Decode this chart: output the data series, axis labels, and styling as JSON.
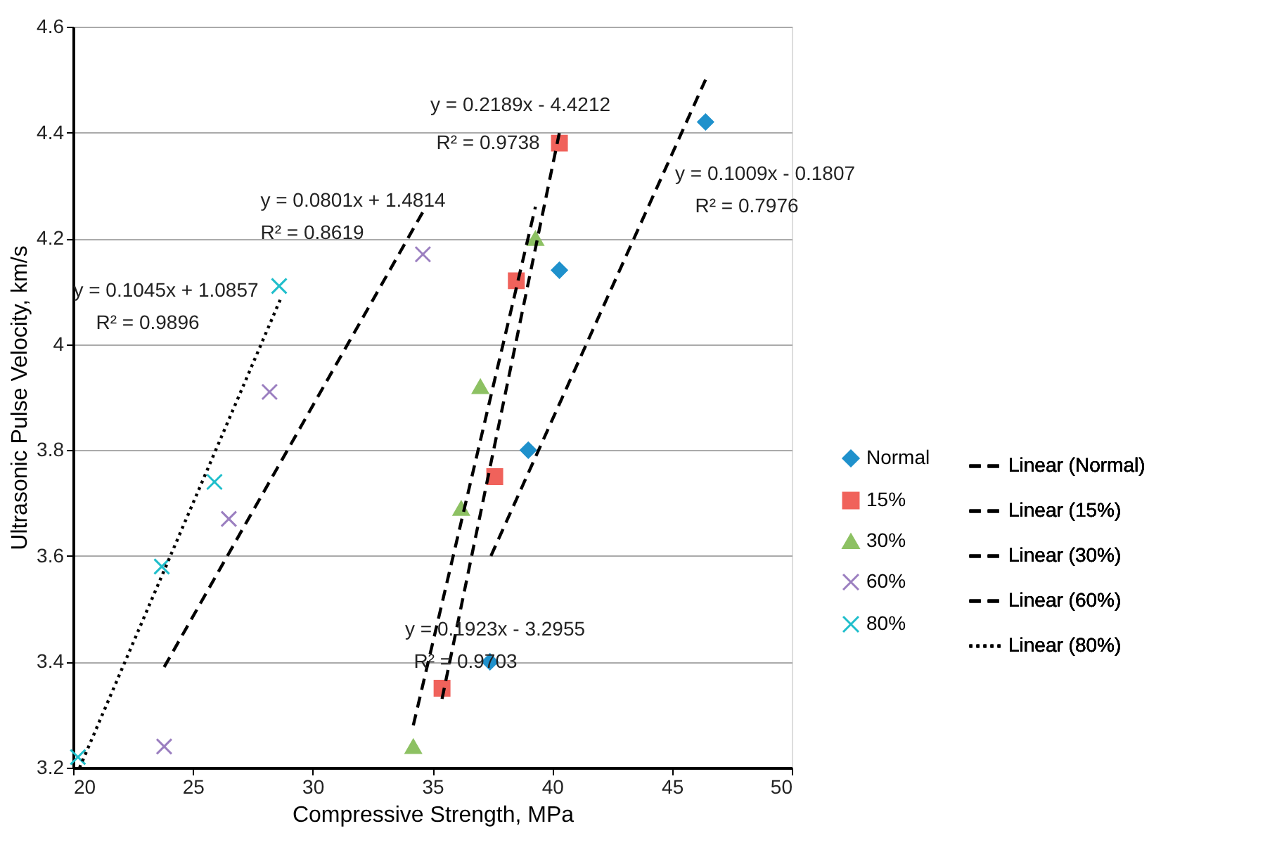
{
  "chart_data": {
    "type": "scatter",
    "xlabel": "Compressive Strength, MPa",
    "ylabel": "Ultrasonic Pulse Velocity, km/s",
    "xlim": [
      20,
      50
    ],
    "xticks": [
      20,
      25,
      30,
      35,
      40,
      45,
      50
    ],
    "ylim": [
      3.2,
      4.6
    ],
    "yticks": [
      3.2,
      3.4,
      3.6,
      3.8,
      4,
      4.2,
      4.4,
      4.6
    ],
    "grid": "y",
    "legend": "right",
    "series": [
      {
        "name": "Normal",
        "marker": "diamond",
        "color": "#1f91cc",
        "x": [
          40.3,
          39.0,
          37.4,
          46.4
        ],
        "values": [
          4.14,
          3.8,
          3.4,
          4.42
        ]
      },
      {
        "name": "15%",
        "marker": "square",
        "color": "#f0625b",
        "x": [
          40.3,
          38.5,
          37.6,
          35.4
        ],
        "values": [
          4.38,
          4.12,
          3.75,
          3.35
        ]
      },
      {
        "name": "30%",
        "marker": "triangle",
        "color": "#8dc163",
        "x": [
          39.3,
          37.0,
          36.2,
          34.2
        ],
        "values": [
          4.2,
          3.92,
          3.69,
          3.24
        ]
      },
      {
        "name": "60%",
        "marker": "cross",
        "color": "#9b7fc0",
        "x": [
          34.6,
          28.2,
          26.5,
          23.8
        ],
        "values": [
          4.17,
          3.91,
          3.67,
          3.24
        ]
      },
      {
        "name": "80%",
        "marker": "cross",
        "color": "#1fbecb",
        "x": [
          28.6,
          25.9,
          23.7,
          20.2
        ],
        "values": [
          4.11,
          3.74,
          3.58,
          3.22
        ]
      },
      {
        "name": "Linear (Normal)",
        "type": "line",
        "line_style": "dashed",
        "color": "#000000",
        "x": [
          37.44,
          46.4
        ],
        "values": [
          3.6,
          4.5
        ]
      },
      {
        "name": "Linear (15%)",
        "type": "line",
        "line_style": "dashed",
        "color": "#000000",
        "x": [
          35.4,
          40.3
        ],
        "values": [
          3.33,
          4.4
        ]
      },
      {
        "name": "Linear (30%)",
        "type": "line",
        "line_style": "dashed",
        "color": "#000000",
        "x": [
          34.2,
          39.3
        ],
        "values": [
          3.28,
          4.26
        ]
      },
      {
        "name": "Linear (60%)",
        "type": "line",
        "line_style": "dashed",
        "color": "#000000",
        "x": [
          23.8,
          34.6
        ],
        "values": [
          3.39,
          4.25
        ]
      },
      {
        "name": "Linear (80%)",
        "type": "line",
        "line_style": "dotted",
        "color": "#000000",
        "x": [
          20.27,
          28.7
        ],
        "values": [
          3.2,
          4.09
        ]
      }
    ],
    "annotations": [
      "y = 0.2189x - 4.4212",
      "R² = 0.9738",
      "y = 0.1009x - 0.1807",
      "R² = 0.7976",
      "y = 0.0801x + 1.4814",
      "R² = 0.8619",
      "y = 0.1045x + 1.0857",
      "R² = 0.9896",
      "y = 0.1923x - 3.2955",
      "R² = 0.9703"
    ]
  }
}
